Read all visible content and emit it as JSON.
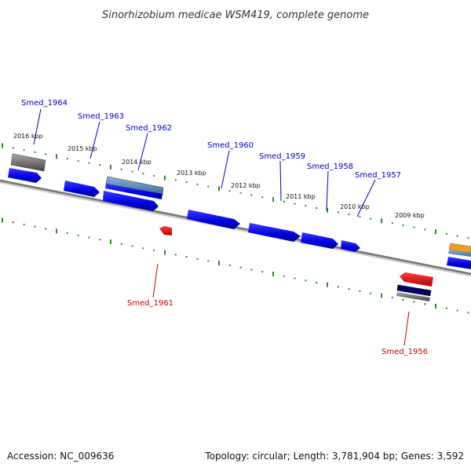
{
  "title": "Sinorhizobium medicae WSM419, complete genome",
  "accession": "Accession: NC_009636",
  "summary": "Topology: circular; Length: 3,781,904 bp; Genes: 3,592",
  "kbp_labels": [
    "2016 kbp",
    "2015 kbp",
    "2014 kbp",
    "2013 kbp",
    "2012 kbp",
    "2011 kbp",
    "2010 kbp",
    "2009 kbp"
  ],
  "genes": [
    {
      "name": "Smed_1964",
      "color": "#0000cc"
    },
    {
      "name": "Smed_1963",
      "color": "#0000cc"
    },
    {
      "name": "Smed_1962",
      "color": "#0000cc"
    },
    {
      "name": "Smed_1960",
      "color": "#0000cc"
    },
    {
      "name": "Smed_1959",
      "color": "#0000cc"
    },
    {
      "name": "Smed_1958",
      "color": "#0000cc"
    },
    {
      "name": "Smed_1957",
      "color": "#0000cc"
    },
    {
      "name": "Smed_1961",
      "color": "#cc0000"
    },
    {
      "name": "Smed_1956",
      "color": "#cc0000"
    }
  ],
  "colors": {
    "forward_gene": "#0000ee",
    "reverse_gene": "#ee0000",
    "backbone": "#888888",
    "ruler_tick": "#2e8b2e",
    "rna_feature": "#4a7fb0",
    "pseudo_feature": "#666666",
    "misc_feature": "#f0a020"
  }
}
